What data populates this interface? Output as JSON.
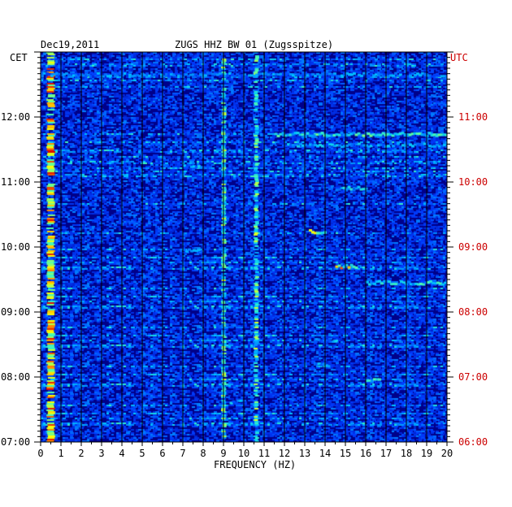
{
  "chart_data": {
    "type": "heatmap",
    "date": "Dec19,2011",
    "station": "ZUGS HHZ BW 01 (Zugsspitze)",
    "left_axis_label": "CET",
    "right_axis_label": "UTC",
    "xlabel": "FREQUENCY (HZ)",
    "xlim": [
      0,
      20
    ],
    "x_ticks": [
      "0",
      "1",
      "2",
      "3",
      "4",
      "5",
      "6",
      "7",
      "8",
      "9",
      "10",
      "11",
      "12",
      "13",
      "14",
      "15",
      "16",
      "17",
      "18",
      "19",
      "20"
    ],
    "y_ticks_cet": [
      "07:00",
      "08:00",
      "09:00",
      "10:00",
      "11:00",
      "12:00"
    ],
    "y_ticks_utc": [
      "06:00",
      "07:00",
      "08:00",
      "09:00",
      "10:00",
      "11:00"
    ],
    "y_range_cet_hours": [
      7,
      13
    ],
    "colors": {
      "background": "#00008a",
      "axis": "#000000",
      "utc_label": "#cc0000"
    },
    "persistent_bands_hz": [
      0.4,
      9.0,
      10.6
    ],
    "events": [
      {
        "time_cet": "12:40",
        "f_from": 0,
        "f_to": 20,
        "strength": 0.55
      },
      {
        "time_cet": "11:45",
        "f_from": 11.5,
        "f_to": 20,
        "strength": 0.75
      },
      {
        "time_cet": "11:35",
        "f_from": 12,
        "f_to": 20,
        "strength": 0.6
      },
      {
        "time_cet": "11:15",
        "f_from": 7,
        "f_to": 8,
        "strength": 0.6
      },
      {
        "time_cet": "10:55",
        "f_from": 14.5,
        "f_to": 16,
        "strength": 0.65
      },
      {
        "time_cet": "10:15",
        "f_from": 13.2,
        "f_to": 14,
        "strength": 0.9
      },
      {
        "time_cet": "09:58",
        "f_from": 7,
        "f_to": 7.8,
        "strength": 0.6
      },
      {
        "time_cet": "09:43",
        "f_from": 14.5,
        "f_to": 15.5,
        "strength": 0.95
      },
      {
        "time_cet": "09:28",
        "f_from": 16,
        "f_to": 20,
        "strength": 0.7
      },
      {
        "time_cet": "08:48",
        "f_from": 8.5,
        "f_to": 9.5,
        "strength": 0.55
      },
      {
        "time_cet": "08:35",
        "f_from": 13.5,
        "f_to": 14.5,
        "strength": 0.6
      },
      {
        "time_cet": "08:12",
        "f_from": 13.5,
        "f_to": 14.2,
        "strength": 0.6
      },
      {
        "time_cet": "07:58",
        "f_from": 16,
        "f_to": 16.7,
        "strength": 0.7
      },
      {
        "time_cet": "07:38",
        "f_from": 9.3,
        "f_to": 9.8,
        "strength": 0.6
      }
    ]
  }
}
